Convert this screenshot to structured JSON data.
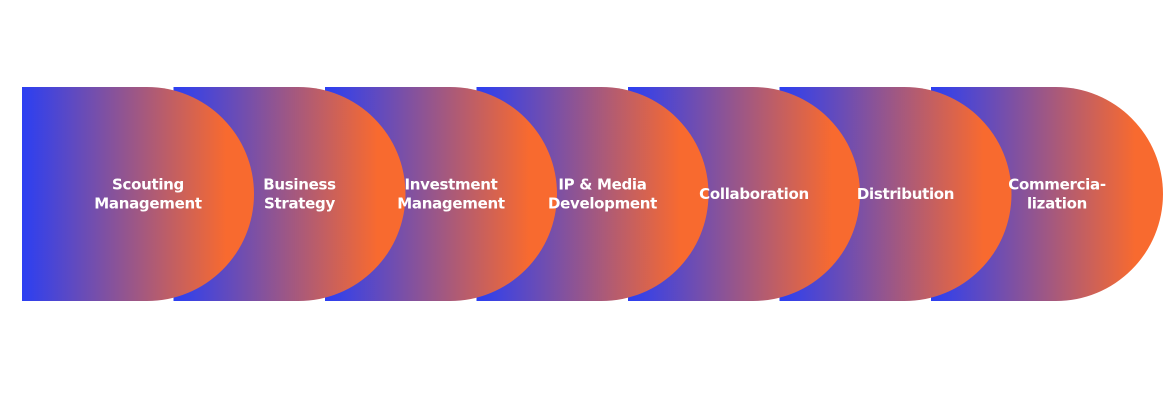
{
  "colors": {
    "start": "#2b3ff2",
    "end": "#f86a2f",
    "text": "#ffffff",
    "background": "#ffffff"
  },
  "steps": [
    {
      "lines": [
        "Scouting",
        "Management"
      ]
    },
    {
      "lines": [
        "Business",
        "Strategy"
      ]
    },
    {
      "lines": [
        "Investment",
        "Management"
      ]
    },
    {
      "lines": [
        "IP & Media",
        "Development"
      ]
    },
    {
      "lines": [
        "Collaboration"
      ]
    },
    {
      "lines": [
        "Distribution"
      ]
    },
    {
      "lines": [
        "Commercia-",
        "lization"
      ]
    }
  ]
}
